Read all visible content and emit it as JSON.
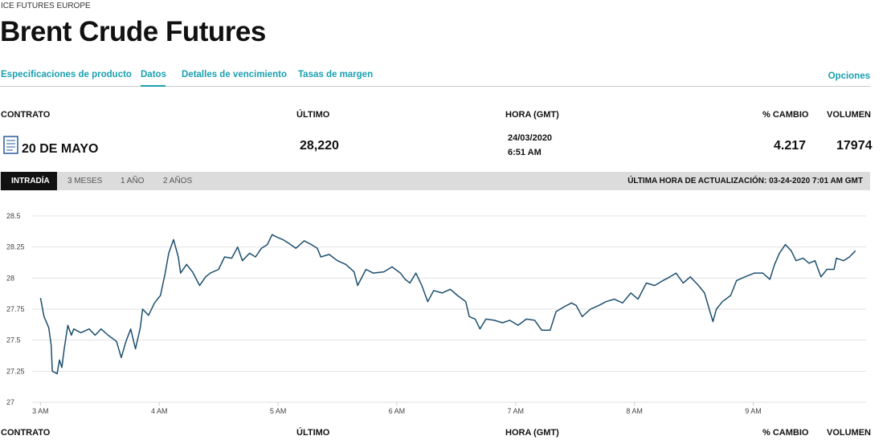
{
  "breadcrumb": "ICE FUTURES EUROPE",
  "title": "Brent Crude Futures",
  "nav": {
    "tabs": [
      "Especificaciones de producto",
      "Datos",
      "Detalles de vencimiento",
      "Tasas de margen"
    ],
    "right": "Opciones"
  },
  "table": {
    "headers": [
      "CONTRATO",
      "ÚLTIMO",
      "HORA (GMT)",
      "% CAMBIO",
      "VOLUMEN"
    ],
    "row": {
      "contract": "20 DE MAYO",
      "last": "28,220",
      "date": "24/03/2020",
      "time": "6:51 AM",
      "change": "4.217",
      "volume": "17974"
    }
  },
  "range_tabs": [
    "INTRADÍA",
    "3 MESES",
    "1 AÑO",
    "2 AÑOS"
  ],
  "update_text": "ÚLTIMA HORA DE ACTUALIZACIÓN: 03-24-2020 7:01 AM GMT",
  "chart_data": {
    "type": "line",
    "color": "#1d4f6e",
    "x": [
      3.0,
      3.03,
      3.07,
      3.09,
      3.1,
      3.14,
      3.16,
      3.18,
      3.2,
      3.23,
      3.26,
      3.28,
      3.34,
      3.41,
      3.46,
      3.51,
      3.57,
      3.64,
      3.68,
      3.72,
      3.76,
      3.8,
      3.84,
      3.86,
      3.91,
      3.96,
      4.01,
      4.05,
      4.08,
      4.12,
      4.16,
      4.18,
      4.23,
      4.28,
      4.34,
      4.39,
      4.43,
      4.5,
      4.55,
      4.61,
      4.66,
      4.7,
      4.76,
      4.81,
      4.86,
      4.91,
      4.95,
      4.99,
      5.04,
      5.09,
      5.15,
      5.22,
      5.28,
      5.33,
      5.36,
      5.43,
      5.5,
      5.57,
      5.64,
      5.67,
      5.74,
      5.8,
      5.89,
      5.96,
      6.03,
      6.07,
      6.11,
      6.16,
      6.21,
      6.26,
      6.31,
      6.38,
      6.45,
      6.51,
      6.58,
      6.61,
      6.66,
      6.7,
      6.75,
      6.82,
      6.89,
      6.95,
      7.02,
      7.09,
      7.16,
      7.22,
      7.29,
      7.34,
      7.41,
      7.47,
      7.51,
      7.56,
      7.63,
      7.7,
      7.76,
      7.83,
      7.9,
      7.97,
      8.03,
      8.1,
      8.17,
      8.24,
      8.3,
      8.35,
      8.41,
      8.47,
      8.54,
      8.59,
      8.66,
      8.69,
      8.74,
      8.81,
      8.86,
      8.93,
      9.01,
      9.08,
      9.14,
      9.18,
      9.22,
      9.27,
      9.32,
      9.36,
      9.42,
      9.47,
      9.52,
      9.57,
      9.62,
      9.68,
      9.7,
      9.76,
      9.81,
      9.86
    ],
    "values": [
      27.84,
      27.69,
      27.6,
      27.46,
      27.25,
      27.23,
      27.34,
      27.28,
      27.43,
      27.62,
      27.54,
      27.59,
      27.56,
      27.59,
      27.54,
      27.59,
      27.54,
      27.49,
      27.36,
      27.49,
      27.59,
      27.43,
      27.6,
      27.75,
      27.7,
      27.8,
      27.86,
      28.04,
      28.2,
      28.31,
      28.17,
      28.04,
      28.11,
      28.05,
      27.94,
      28.01,
      28.04,
      28.07,
      28.17,
      28.16,
      28.25,
      28.14,
      28.2,
      28.17,
      28.24,
      28.27,
      28.35,
      28.33,
      28.31,
      28.28,
      28.24,
      28.3,
      28.27,
      28.24,
      28.17,
      28.19,
      28.14,
      28.11,
      28.05,
      27.94,
      28.07,
      28.04,
      28.05,
      28.09,
      28.04,
      27.99,
      27.96,
      28.04,
      27.94,
      27.81,
      27.9,
      27.88,
      27.91,
      27.86,
      27.81,
      27.69,
      27.67,
      27.59,
      27.67,
      27.66,
      27.64,
      27.66,
      27.62,
      27.67,
      27.66,
      27.58,
      27.58,
      27.73,
      27.77,
      27.8,
      27.78,
      27.69,
      27.75,
      27.78,
      27.81,
      27.83,
      27.8,
      27.88,
      27.83,
      27.96,
      27.94,
      27.98,
      28.01,
      28.04,
      27.96,
      28.01,
      27.94,
      27.88,
      27.65,
      27.75,
      27.81,
      27.86,
      27.98,
      28.01,
      28.04,
      28.04,
      27.99,
      28.11,
      28.2,
      28.27,
      28.22,
      28.14,
      28.16,
      28.12,
      28.14,
      28.01,
      28.07,
      28.07,
      28.16,
      28.14,
      28.17,
      28.22
    ],
    "xlim": [
      2.93,
      9.95
    ],
    "xticks": [
      {
        "value": 3,
        "label": "3 AM"
      },
      {
        "value": 4,
        "label": "4 AM"
      },
      {
        "value": 5,
        "label": "5 AM"
      },
      {
        "value": 6,
        "label": "6 AM"
      },
      {
        "value": 7,
        "label": "7 AM"
      },
      {
        "value": 8,
        "label": "8 AM"
      },
      {
        "value": 9,
        "label": "9 AM"
      }
    ],
    "ylim": [
      27,
      28.5
    ],
    "yticks": [
      27,
      27.25,
      27.5,
      27.75,
      28,
      28.25,
      28.5
    ],
    "grid": true
  },
  "footer_headers": [
    "CONTRATO",
    "ÚLTIMO",
    "HORA (GMT)",
    "% CAMBIO",
    "VOLUMEN"
  ]
}
